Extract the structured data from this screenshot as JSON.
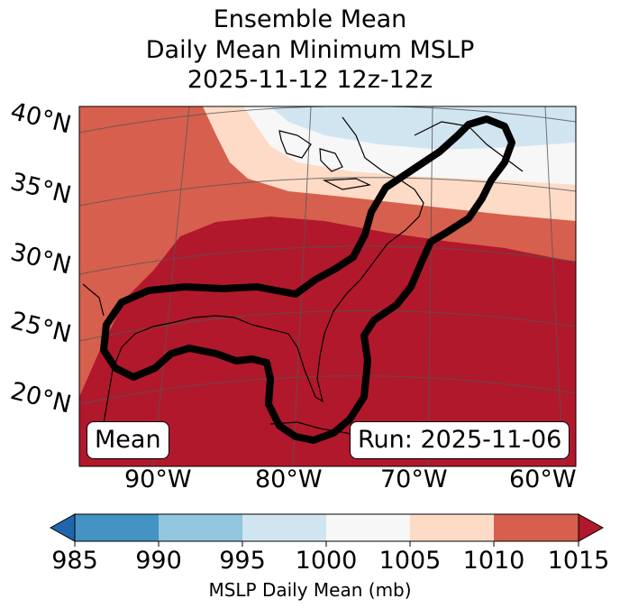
{
  "title": {
    "line1": "Ensemble Mean",
    "line2": "Daily Mean Minimum MSLP",
    "line3": "2025-11-12 12z-12z"
  },
  "map": {
    "lat_labels": [
      "40°N",
      "35°N",
      "30°N",
      "25°N",
      "20°N"
    ],
    "lon_labels": [
      "90°W",
      "80°W",
      "70°W",
      "60°W"
    ],
    "mean_box": "Mean",
    "run_box": "Run: 2025-11-06"
  },
  "colorbar": {
    "bounds": [
      "985",
      "990",
      "995",
      "1000",
      "1005",
      "1010",
      "1015"
    ],
    "colors": [
      "#2166ac",
      "#4393c3",
      "#92c5de",
      "#d1e5f0",
      "#f7f7f7",
      "#fddbc7",
      "#d6604d",
      "#b2182b"
    ],
    "label": "MSLP Daily Mean (mb)"
  }
}
